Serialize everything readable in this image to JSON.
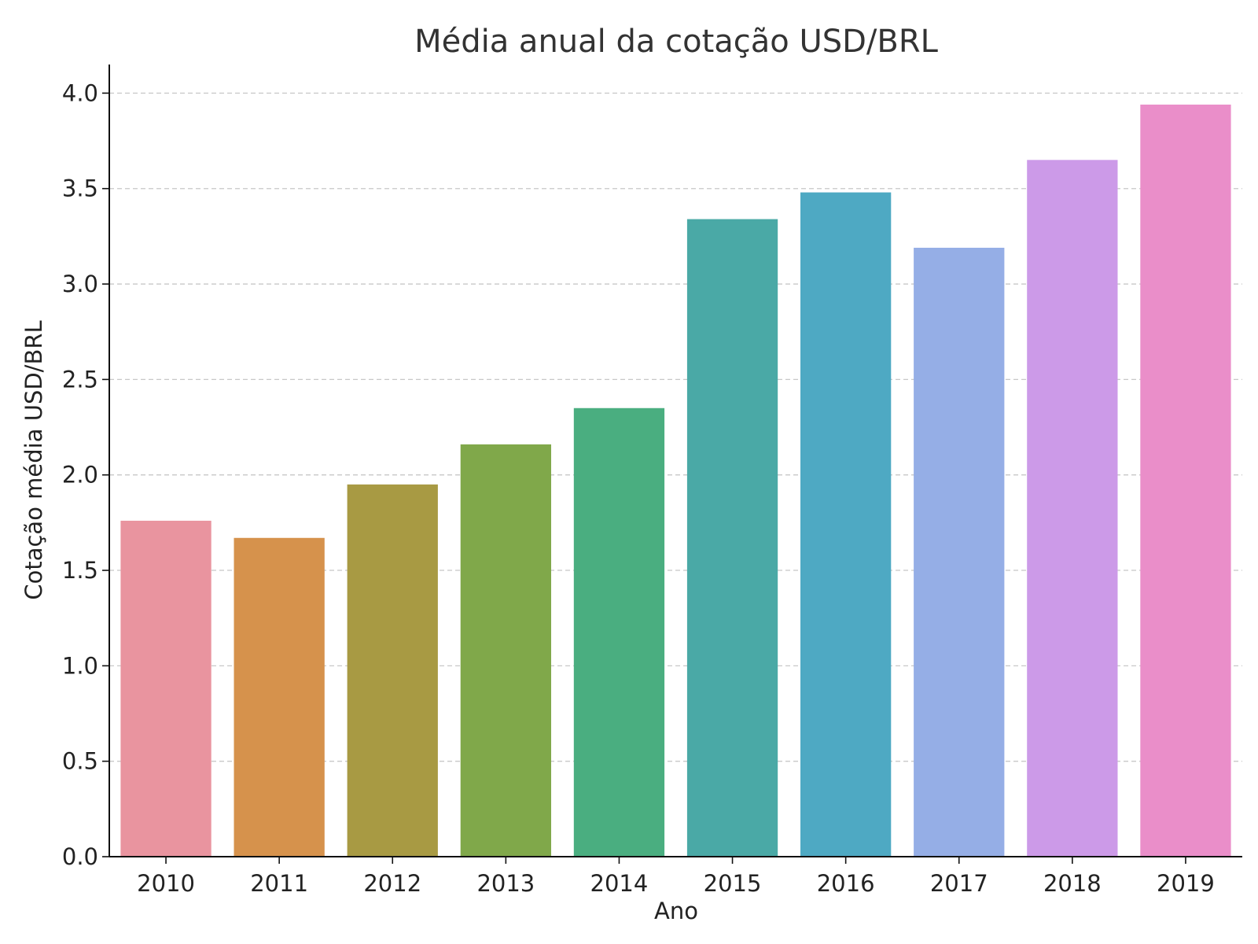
{
  "chart_data": {
    "type": "bar",
    "title": "Média anual da cotação USD/BRL",
    "xlabel": "Ano",
    "ylabel": "Cotação média USD/BRL",
    "categories": [
      "2010",
      "2011",
      "2012",
      "2013",
      "2014",
      "2015",
      "2016",
      "2017",
      "2018",
      "2019"
    ],
    "values": [
      1.76,
      1.67,
      1.95,
      2.16,
      2.35,
      3.34,
      3.48,
      3.19,
      3.65,
      3.94
    ],
    "colors": [
      "#e9949f",
      "#d6924c",
      "#a89a43",
      "#80a84a",
      "#4aae80",
      "#4aa9a6",
      "#4ea9c3",
      "#95aee6",
      "#cc9ae8",
      "#ea8ec9"
    ],
    "ylim": [
      0,
      4.15
    ],
    "yticks": [
      0.0,
      0.5,
      1.0,
      1.5,
      2.0,
      2.5,
      3.0,
      3.5,
      4.0
    ],
    "ytick_labels": [
      "0.0",
      "0.5",
      "1.0",
      "1.5",
      "2.0",
      "2.5",
      "3.0",
      "3.5",
      "4.0"
    ],
    "grid": "y-dashed",
    "legend": "none"
  }
}
